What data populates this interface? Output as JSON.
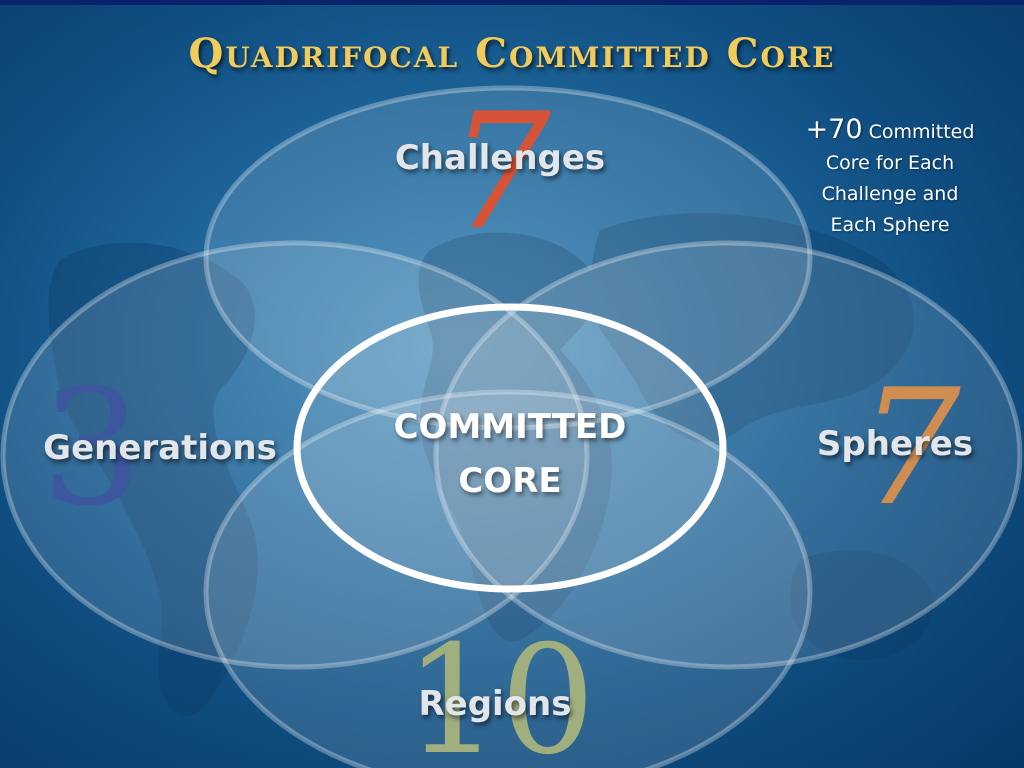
{
  "title": "Quadrifocal Committed Core",
  "note": {
    "number": "+70",
    "lines": [
      "Committed",
      "Core for Each",
      "Challenge and",
      "Each Sphere"
    ]
  },
  "challenges": {
    "number": "7",
    "label": "Challenges",
    "number_color": "#d23a1a"
  },
  "generations": {
    "number": "3",
    "label": "Generations",
    "number_color": "#1f3e8f"
  },
  "spheres": {
    "number": "7",
    "label": "Spheres",
    "number_color": "#c87e37"
  },
  "regions": {
    "number": "10",
    "label": "Regions",
    "number_color": "#93a36a"
  },
  "core": {
    "line1": "COMMITTED",
    "line2": "CORE"
  },
  "colors": {
    "title_gold": "#f1cc5c",
    "background_blue": "#1f679c"
  }
}
